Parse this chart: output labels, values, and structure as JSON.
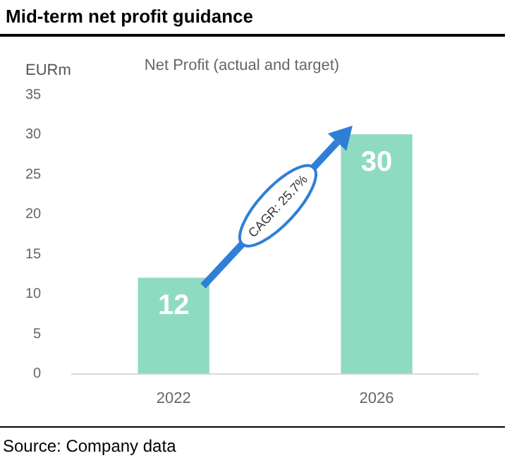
{
  "chart_data": {
    "type": "bar",
    "title": "Mid-term net profit guidance",
    "subtitle": "Net Profit (actual and target)",
    "ylabel": "EURm",
    "categories": [
      "2022",
      "2026"
    ],
    "values": [
      12,
      30
    ],
    "color": "#8fdbc1",
    "ylim": [
      0,
      35
    ],
    "yticks": [
      0,
      5,
      10,
      15,
      20,
      25,
      30,
      35
    ],
    "grid": false,
    "data_labels": true,
    "annotations": [
      "CAGR: 25.7%",
      "Source: Company data"
    ]
  }
}
